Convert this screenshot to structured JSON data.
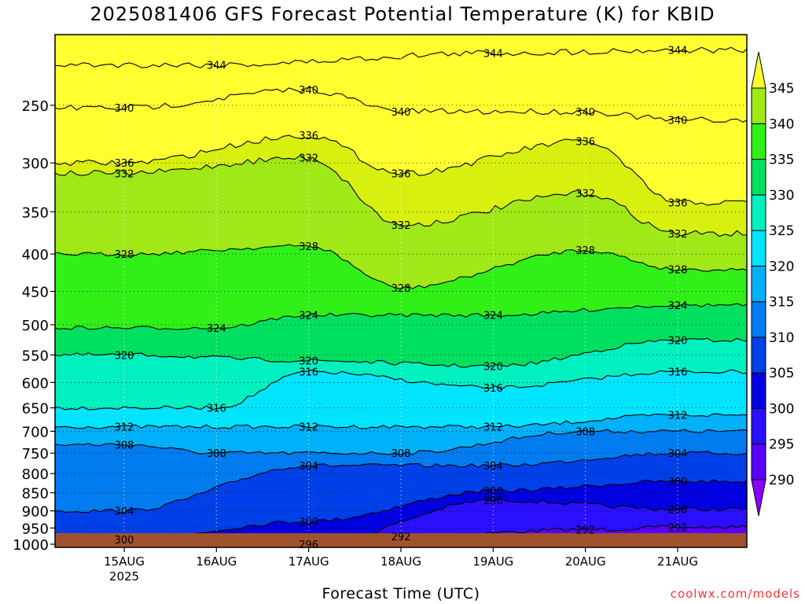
{
  "title": "2025081406 GFS Forecast Potential Temperature (K) for KBID",
  "xlabel": "Forecast Time (UTC)",
  "credit": "coolwx.com/models",
  "chart_data": {
    "type": "heatmap",
    "title": "2025081406 GFS Forecast Potential Temperature (K) for KBID",
    "xlabel": "Forecast Time (UTC)",
    "ylabel": "",
    "y_axis": {
      "scale": "log",
      "inverted": true,
      "ylim": [
        1010,
        200
      ],
      "ticks": [
        250,
        300,
        350,
        400,
        450,
        500,
        550,
        600,
        650,
        700,
        750,
        800,
        850,
        900,
        950,
        1000
      ]
    },
    "x_axis": {
      "xlim_days": [
        "2025-08-14 06",
        "2025-08-21 18"
      ],
      "ticks": [
        {
          "label": "15AUG",
          "sublabel": "2025",
          "day": 15
        },
        {
          "label": "16AUG",
          "sublabel": "",
          "day": 16
        },
        {
          "label": "17AUG",
          "sublabel": "",
          "day": 17
        },
        {
          "label": "18AUG",
          "sublabel": "",
          "day": 18
        },
        {
          "label": "19AUG",
          "sublabel": "",
          "day": 19
        },
        {
          "label": "20AUG",
          "sublabel": "",
          "day": 20
        },
        {
          "label": "21AUG",
          "sublabel": "",
          "day": 21
        }
      ]
    },
    "grid": true,
    "colorbar": {
      "placement": "right",
      "levels": [
        290,
        295,
        300,
        305,
        310,
        315,
        320,
        325,
        330,
        335,
        340,
        345
      ],
      "labels": [
        "290",
        "295",
        "300",
        "305",
        "310",
        "315",
        "320",
        "325",
        "330",
        "335",
        "340",
        "345"
      ],
      "colors": [
        "#8a00ff",
        "#5a00ff",
        "#2a10ff",
        "#0000e0",
        "#0040e8",
        "#007cf0",
        "#00b0f8",
        "#00e4ff",
        "#00f0c0",
        "#00e060",
        "#30f018",
        "#a0e818",
        "#d8f010",
        "#ffff30"
      ]
    },
    "ground_color": "#a0522d",
    "series": [
      {
        "label": "292",
        "values": [
          {
            "x": "18AUG",
            "y": 975
          },
          {
            "x": "20AUG",
            "y": 955
          },
          {
            "x": "21AUG",
            "y": 948
          }
        ]
      },
      {
        "label": "296",
        "values": [
          {
            "x": "17AUG",
            "y": 1000
          },
          {
            "x": "19AUG",
            "y": 870
          },
          {
            "x": "21AUG",
            "y": 895
          }
        ]
      },
      {
        "label": "300",
        "values": [
          {
            "x": "15AUG",
            "y": 985
          },
          {
            "x": "17AUG",
            "y": 930
          },
          {
            "x": "19AUG",
            "y": 845
          },
          {
            "x": "21AUG",
            "y": 820
          }
        ]
      },
      {
        "label": "304",
        "values": [
          {
            "x": "15AUG",
            "y": 900
          },
          {
            "x": "17AUG",
            "y": 780
          },
          {
            "x": "19AUG",
            "y": 780
          },
          {
            "x": "21AUG",
            "y": 750
          }
        ]
      },
      {
        "label": "308",
        "values": [
          {
            "x": "15AUG",
            "y": 730
          },
          {
            "x": "16AUG",
            "y": 750
          },
          {
            "x": "18AUG",
            "y": 750
          },
          {
            "x": "20AUG",
            "y": 700
          }
        ]
      },
      {
        "label": "312",
        "values": [
          {
            "x": "15AUG",
            "y": 690
          },
          {
            "x": "17AUG",
            "y": 690
          },
          {
            "x": "19AUG",
            "y": 690
          },
          {
            "x": "21AUG",
            "y": 665
          }
        ]
      },
      {
        "label": "316",
        "values": [
          {
            "x": "16AUG",
            "y": 650
          },
          {
            "x": "17AUG",
            "y": 580
          },
          {
            "x": "19AUG",
            "y": 610
          },
          {
            "x": "21AUG",
            "y": 580
          }
        ]
      },
      {
        "label": "320",
        "values": [
          {
            "x": "15AUG",
            "y": 550
          },
          {
            "x": "17AUG",
            "y": 560
          },
          {
            "x": "19AUG",
            "y": 570
          },
          {
            "x": "21AUG",
            "y": 525
          }
        ]
      },
      {
        "label": "324",
        "values": [
          {
            "x": "16AUG",
            "y": 505
          },
          {
            "x": "17AUG",
            "y": 485
          },
          {
            "x": "19AUG",
            "y": 485
          },
          {
            "x": "21AUG",
            "y": 470
          }
        ]
      },
      {
        "label": "328",
        "values": [
          {
            "x": "15AUG",
            "y": 400
          },
          {
            "x": "17AUG",
            "y": 390
          },
          {
            "x": "18AUG",
            "y": 445
          },
          {
            "x": "20AUG",
            "y": 395
          },
          {
            "x": "21AUG",
            "y": 420
          }
        ]
      },
      {
        "label": "332",
        "values": [
          {
            "x": "15AUG",
            "y": 310
          },
          {
            "x": "17AUG",
            "y": 295
          },
          {
            "x": "18AUG",
            "y": 365
          },
          {
            "x": "20AUG",
            "y": 330
          },
          {
            "x": "21AUG",
            "y": 375
          }
        ]
      },
      {
        "label": "336",
        "values": [
          {
            "x": "15AUG",
            "y": 300
          },
          {
            "x": "17AUG",
            "y": 275
          },
          {
            "x": "18AUG",
            "y": 310
          },
          {
            "x": "20AUG",
            "y": 280
          },
          {
            "x": "21AUG",
            "y": 340
          }
        ]
      },
      {
        "label": "340",
        "values": [
          {
            "x": "15AUG",
            "y": 252
          },
          {
            "x": "17AUG",
            "y": 238
          },
          {
            "x": "18AUG",
            "y": 255
          },
          {
            "x": "20AUG",
            "y": 255
          },
          {
            "x": "21AUG",
            "y": 262
          }
        ]
      },
      {
        "label": "344",
        "values": [
          {
            "x": "16AUG",
            "y": 220
          },
          {
            "x": "19AUG",
            "y": 212
          },
          {
            "x": "21AUG",
            "y": 210
          }
        ]
      }
    ]
  }
}
